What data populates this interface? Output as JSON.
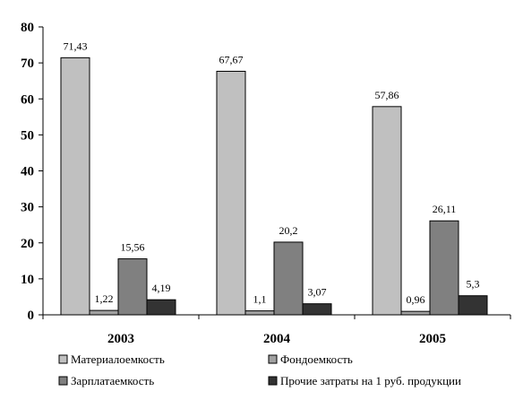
{
  "chart_data": {
    "type": "bar",
    "categories": [
      "2003",
      "2004",
      "2005"
    ],
    "ylim": [
      0,
      80
    ],
    "yticks": [
      0,
      10,
      20,
      30,
      40,
      50,
      60,
      70,
      80
    ],
    "grid": false,
    "legend_position": "bottom",
    "series": [
      {
        "name": "Материалоемкость",
        "color": "#c0c0c0",
        "values": [
          71.43,
          67.67,
          57.86
        ],
        "labels": [
          "71,43",
          "67,67",
          "57,86"
        ]
      },
      {
        "name": "Фондоемкость",
        "color": "#a0a0a0",
        "values": [
          1.22,
          1.1,
          0.96
        ],
        "labels": [
          "1,22",
          "1,1",
          "0,96"
        ]
      },
      {
        "name": "Зарплатаемкость",
        "color": "#808080",
        "values": [
          15.56,
          20.2,
          26.11
        ],
        "labels": [
          "15,56",
          "20,2",
          "26,11"
        ]
      },
      {
        "name": "Прочие затраты на 1 руб. продукции",
        "color": "#333333",
        "values": [
          4.19,
          3.07,
          5.3
        ],
        "labels": [
          "4,19",
          "3,07",
          "5,3"
        ]
      }
    ]
  }
}
